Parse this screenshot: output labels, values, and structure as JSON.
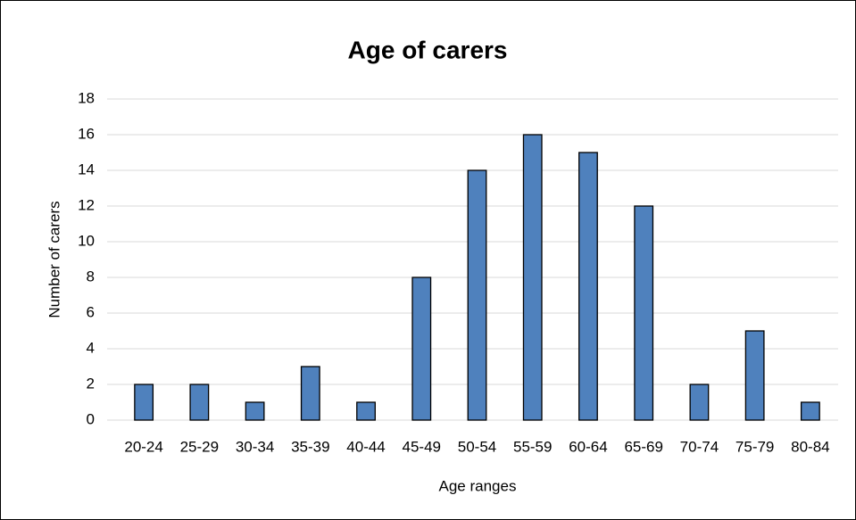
{
  "chart_data": {
    "type": "bar",
    "title": "Age of carers",
    "x_label": "Age ranges",
    "y_label": "Number of carers",
    "categories": [
      "20-24",
      "25-29",
      "30-34",
      "35-39",
      "40-44",
      "45-49",
      "50-54",
      "55-59",
      "60-64",
      "65-69",
      "70-74",
      "75-79",
      "80-84"
    ],
    "values": [
      2,
      2,
      1,
      3,
      1,
      8,
      14,
      16,
      15,
      12,
      2,
      5,
      1
    ],
    "color": "#4f81bd",
    "ylim": [
      0,
      18
    ],
    "yticks": [
      0,
      2,
      4,
      6,
      8,
      10,
      12,
      14,
      16,
      18
    ],
    "grid": true
  }
}
